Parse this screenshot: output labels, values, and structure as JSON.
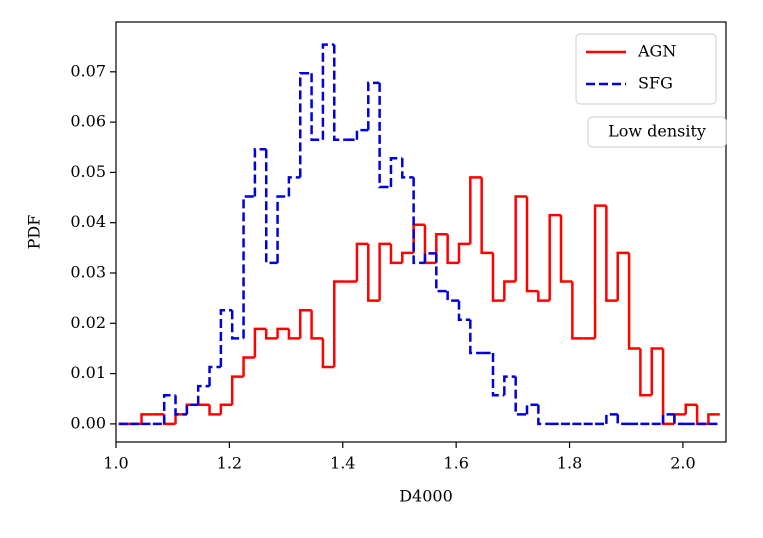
{
  "chart_data": {
    "type": "histogram",
    "xlabel": "D4000",
    "ylabel": "PDF",
    "annotation": "Low density",
    "legend": "upper right",
    "bins": [
      1.005,
      1.025,
      1.045,
      1.065,
      1.085,
      1.105,
      1.125,
      1.145,
      1.165,
      1.185,
      1.205,
      1.225,
      1.245,
      1.265,
      1.285,
      1.305,
      1.325,
      1.345,
      1.365,
      1.385,
      1.405,
      1.425,
      1.445,
      1.465,
      1.485,
      1.505,
      1.525,
      1.545,
      1.565,
      1.585,
      1.605,
      1.625,
      1.645,
      1.665,
      1.685,
      1.705,
      1.725,
      1.745,
      1.765,
      1.785,
      1.805,
      1.825,
      1.845,
      1.865,
      1.885,
      1.905,
      1.925,
      1.945,
      1.965,
      1.985,
      2.005,
      2.025,
      2.045,
      2.065
    ],
    "series": [
      {
        "name": "AGN",
        "color": "#ff0000",
        "dash": "solid",
        "values": [
          0,
          0,
          0.0019,
          0.0019,
          0,
          0.0019,
          0.0038,
          0.0038,
          0.0019,
          0.0038,
          0.0094,
          0.0132,
          0.0189,
          0.017,
          0.0189,
          0.017,
          0.0226,
          0.017,
          0.0113,
          0.0283,
          0.0283,
          0.0358,
          0.0245,
          0.0358,
          0.032,
          0.034,
          0.0396,
          0.032,
          0.0377,
          0.032,
          0.0358,
          0.049,
          0.034,
          0.0245,
          0.0283,
          0.0452,
          0.0264,
          0.0245,
          0.0415,
          0.0283,
          0.017,
          0.017,
          0.0434,
          0.0245,
          0.034,
          0.015,
          0.0057,
          0.015,
          0,
          0.0019,
          0.0038,
          0,
          0.0019
        ]
      },
      {
        "name": "SFG",
        "color": "#0000dd",
        "dash": "dashed",
        "values": [
          0,
          0,
          0,
          0,
          0.0057,
          0.0019,
          0.0038,
          0.0075,
          0.0113,
          0.0226,
          0.017,
          0.0452,
          0.0546,
          0.032,
          0.0452,
          0.049,
          0.0697,
          0.0565,
          0.0754,
          0.0565,
          0.0565,
          0.0584,
          0.0678,
          0.0471,
          0.0528,
          0.049,
          0.032,
          0.0339,
          0.0264,
          0.0245,
          0.0207,
          0.0141,
          0.0141,
          0.0057,
          0.0094,
          0.0019,
          0.0038,
          0,
          0,
          0,
          0,
          0,
          0,
          0.0019,
          0,
          0,
          0,
          0,
          0.0019,
          0,
          0,
          0,
          0
        ]
      }
    ],
    "xlim": [
      1.0,
      2.076
    ],
    "ylim": [
      -0.0036,
      0.0799
    ],
    "xticks": [
      {
        "value": 1.0,
        "label": "1.0"
      },
      {
        "value": 1.2,
        "label": "1.2"
      },
      {
        "value": 1.4,
        "label": "1.4"
      },
      {
        "value": 1.6,
        "label": "1.6"
      },
      {
        "value": 1.8,
        "label": "1.8"
      },
      {
        "value": 2.0,
        "label": "2.0"
      }
    ],
    "yticks": [
      {
        "value": 0,
        "label": "0.00"
      },
      {
        "value": 0.01,
        "label": "0.01"
      },
      {
        "value": 0.02,
        "label": "0.02"
      },
      {
        "value": 0.03,
        "label": "0.03"
      },
      {
        "value": 0.04,
        "label": "0.04"
      },
      {
        "value": 0.05,
        "label": "0.05"
      },
      {
        "value": 0.06,
        "label": "0.06"
      },
      {
        "value": 0.07,
        "label": "0.07"
      }
    ]
  }
}
